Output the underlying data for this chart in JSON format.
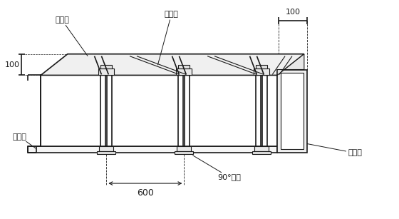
{
  "bg_color": "#ffffff",
  "line_color": "#1a1a1a",
  "fig_width": 5.6,
  "fig_height": 3.07,
  "dpi": 100,
  "labels": {
    "top_panel": "顶面板",
    "binding_strip": "捆扎带",
    "bottom_panel": "底面板",
    "side_panel": "侧面板",
    "guard_90": "90°护角",
    "dim_100_top": "100",
    "dim_100_left": "100",
    "dim_600": "600"
  }
}
